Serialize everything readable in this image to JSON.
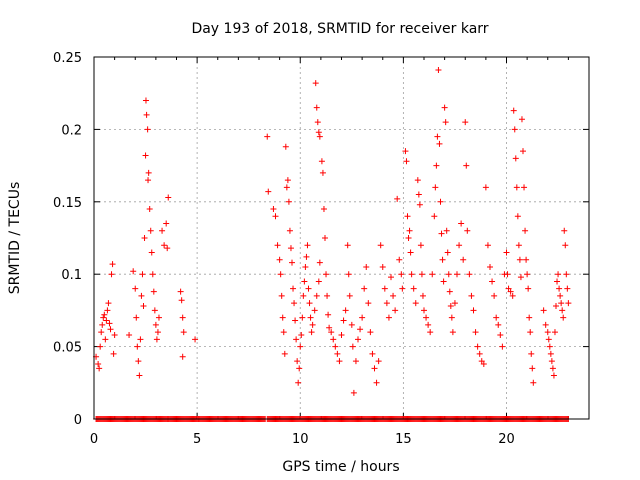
{
  "chart_data": {
    "type": "scatter",
    "title": "Day 193 of 2018, SRMTID for receiver karr",
    "xlabel": "GPS time / hours",
    "ylabel": "SRMTID / TECUs",
    "xlim": [
      0,
      24
    ],
    "ylim": [
      0,
      0.25
    ],
    "xticks": [
      0,
      5,
      10,
      15,
      20
    ],
    "xtick_labels": [
      "0",
      "5",
      "10",
      "15",
      "20"
    ],
    "yticks": [
      0,
      0.05,
      0.1,
      0.15,
      0.2,
      0.25
    ],
    "ytick_labels": [
      "0",
      "0.05",
      "0.1",
      "0.15",
      "0.2",
      "0.25"
    ],
    "grid": true,
    "marker": "+",
    "series": [
      {
        "name": "SRMTID",
        "color": "#ff0000",
        "points": [
          [
            0.1,
            0.043
          ],
          [
            0.2,
            0.038
          ],
          [
            0.25,
            0.035
          ],
          [
            0.3,
            0.05
          ],
          [
            0.35,
            0.06
          ],
          [
            0.4,
            0.065
          ],
          [
            0.45,
            0.07
          ],
          [
            0.5,
            0.072
          ],
          [
            0.55,
            0.055
          ],
          [
            0.6,
            0.068
          ],
          [
            0.65,
            0.075
          ],
          [
            0.7,
            0.08
          ],
          [
            0.75,
            0.066
          ],
          [
            0.8,
            0.062
          ],
          [
            0.85,
            0.1
          ],
          [
            0.9,
            0.107
          ],
          [
            0.95,
            0.045
          ],
          [
            1.0,
            0.058
          ],
          [
            1.7,
            0.058
          ],
          [
            1.9,
            0.102
          ],
          [
            2.0,
            0.09
          ],
          [
            2.05,
            0.07
          ],
          [
            2.1,
            0.05
          ],
          [
            2.15,
            0.04
          ],
          [
            2.2,
            0.03
          ],
          [
            2.25,
            0.055
          ],
          [
            2.3,
            0.085
          ],
          [
            2.35,
            0.1
          ],
          [
            2.4,
            0.078
          ],
          [
            2.45,
            0.125
          ],
          [
            2.5,
            0.182
          ],
          [
            2.52,
            0.22
          ],
          [
            2.55,
            0.21
          ],
          [
            2.6,
            0.2
          ],
          [
            2.62,
            0.165
          ],
          [
            2.65,
            0.17
          ],
          [
            2.7,
            0.145
          ],
          [
            2.75,
            0.13
          ],
          [
            2.8,
            0.115
          ],
          [
            2.85,
            0.1
          ],
          [
            2.9,
            0.088
          ],
          [
            2.95,
            0.075
          ],
          [
            3.0,
            0.065
          ],
          [
            3.05,
            0.055
          ],
          [
            3.1,
            0.06
          ],
          [
            3.15,
            0.07
          ],
          [
            3.3,
            0.13
          ],
          [
            3.4,
            0.12
          ],
          [
            3.5,
            0.135
          ],
          [
            3.6,
            0.153
          ],
          [
            3.55,
            0.118
          ],
          [
            4.2,
            0.088
          ],
          [
            4.25,
            0.082
          ],
          [
            4.3,
            0.07
          ],
          [
            4.35,
            0.06
          ],
          [
            4.3,
            0.043
          ],
          [
            4.9,
            0.055
          ],
          [
            8.4,
            0.195
          ],
          [
            8.45,
            0.157
          ],
          [
            8.7,
            0.145
          ],
          [
            8.8,
            0.14
          ],
          [
            8.9,
            0.12
          ],
          [
            9.0,
            0.11
          ],
          [
            9.05,
            0.1
          ],
          [
            9.1,
            0.085
          ],
          [
            9.15,
            0.07
          ],
          [
            9.2,
            0.06
          ],
          [
            9.25,
            0.045
          ],
          [
            9.3,
            0.188
          ],
          [
            9.35,
            0.16
          ],
          [
            9.4,
            0.165
          ],
          [
            9.45,
            0.15
          ],
          [
            9.5,
            0.13
          ],
          [
            9.55,
            0.118
          ],
          [
            9.6,
            0.108
          ],
          [
            9.65,
            0.09
          ],
          [
            9.7,
            0.08
          ],
          [
            9.75,
            0.068
          ],
          [
            9.8,
            0.055
          ],
          [
            9.85,
            0.04
          ],
          [
            9.9,
            0.025
          ],
          [
            9.95,
            0.035
          ],
          [
            10.0,
            0.05
          ],
          [
            10.05,
            0.058
          ],
          [
            10.1,
            0.07
          ],
          [
            10.15,
            0.085
          ],
          [
            10.2,
            0.095
          ],
          [
            10.25,
            0.105
          ],
          [
            10.3,
            0.112
          ],
          [
            10.35,
            0.12
          ],
          [
            10.4,
            0.09
          ],
          [
            10.45,
            0.08
          ],
          [
            10.5,
            0.07
          ],
          [
            10.55,
            0.06
          ],
          [
            10.6,
            0.065
          ],
          [
            10.7,
            0.075
          ],
          [
            10.8,
            0.085
          ],
          [
            10.9,
            0.095
          ],
          [
            10.95,
            0.108
          ],
          [
            10.75,
            0.232
          ],
          [
            10.8,
            0.215
          ],
          [
            10.85,
            0.205
          ],
          [
            10.9,
            0.198
          ],
          [
            10.95,
            0.195
          ],
          [
            11.05,
            0.178
          ],
          [
            11.1,
            0.17
          ],
          [
            11.15,
            0.145
          ],
          [
            11.2,
            0.125
          ],
          [
            11.25,
            0.1
          ],
          [
            11.3,
            0.085
          ],
          [
            11.35,
            0.072
          ],
          [
            11.4,
            0.063
          ],
          [
            11.5,
            0.06
          ],
          [
            11.6,
            0.055
          ],
          [
            11.7,
            0.05
          ],
          [
            11.8,
            0.045
          ],
          [
            11.9,
            0.04
          ],
          [
            12.0,
            0.058
          ],
          [
            12.1,
            0.068
          ],
          [
            12.2,
            0.075
          ],
          [
            12.3,
            0.12
          ],
          [
            12.35,
            0.1
          ],
          [
            12.4,
            0.085
          ],
          [
            12.5,
            0.065
          ],
          [
            12.55,
            0.05
          ],
          [
            12.6,
            0.018
          ],
          [
            12.7,
            0.04
          ],
          [
            12.8,
            0.055
          ],
          [
            12.9,
            0.062
          ],
          [
            13.0,
            0.07
          ],
          [
            13.1,
            0.09
          ],
          [
            13.2,
            0.105
          ],
          [
            13.3,
            0.08
          ],
          [
            13.4,
            0.06
          ],
          [
            13.5,
            0.045
          ],
          [
            13.6,
            0.035
          ],
          [
            13.7,
            0.025
          ],
          [
            13.8,
            0.04
          ],
          [
            13.9,
            0.12
          ],
          [
            14.0,
            0.105
          ],
          [
            14.1,
            0.09
          ],
          [
            14.2,
            0.08
          ],
          [
            14.3,
            0.07
          ],
          [
            14.4,
            0.098
          ],
          [
            14.5,
            0.085
          ],
          [
            14.6,
            0.075
          ],
          [
            14.7,
            0.152
          ],
          [
            14.8,
            0.11
          ],
          [
            14.9,
            0.1
          ],
          [
            14.95,
            0.09
          ],
          [
            15.1,
            0.185
          ],
          [
            15.15,
            0.178
          ],
          [
            15.2,
            0.14
          ],
          [
            15.25,
            0.125
          ],
          [
            15.3,
            0.13
          ],
          [
            15.35,
            0.115
          ],
          [
            15.4,
            0.1
          ],
          [
            15.5,
            0.09
          ],
          [
            15.6,
            0.08
          ],
          [
            15.7,
            0.165
          ],
          [
            15.75,
            0.155
          ],
          [
            15.8,
            0.148
          ],
          [
            15.85,
            0.12
          ],
          [
            15.9,
            0.1
          ],
          [
            15.95,
            0.085
          ],
          [
            16.0,
            0.075
          ],
          [
            16.1,
            0.07
          ],
          [
            16.2,
            0.065
          ],
          [
            16.3,
            0.06
          ],
          [
            16.4,
            0.1
          ],
          [
            16.5,
            0.14
          ],
          [
            16.55,
            0.16
          ],
          [
            16.6,
            0.175
          ],
          [
            16.65,
            0.195
          ],
          [
            16.7,
            0.241
          ],
          [
            16.75,
            0.19
          ],
          [
            16.8,
            0.15
          ],
          [
            16.85,
            0.128
          ],
          [
            16.9,
            0.11
          ],
          [
            16.95,
            0.095
          ],
          [
            17.0,
            0.215
          ],
          [
            17.05,
            0.205
          ],
          [
            17.1,
            0.13
          ],
          [
            17.15,
            0.115
          ],
          [
            17.2,
            0.1
          ],
          [
            17.25,
            0.088
          ],
          [
            17.3,
            0.078
          ],
          [
            17.35,
            0.07
          ],
          [
            17.4,
            0.06
          ],
          [
            17.5,
            0.08
          ],
          [
            17.6,
            0.1
          ],
          [
            17.7,
            0.12
          ],
          [
            17.8,
            0.135
          ],
          [
            17.9,
            0.11
          ],
          [
            18.0,
            0.205
          ],
          [
            18.05,
            0.175
          ],
          [
            18.1,
            0.13
          ],
          [
            18.2,
            0.1
          ],
          [
            18.3,
            0.085
          ],
          [
            18.4,
            0.075
          ],
          [
            18.5,
            0.06
          ],
          [
            18.6,
            0.05
          ],
          [
            18.7,
            0.045
          ],
          [
            18.8,
            0.04
          ],
          [
            18.9,
            0.038
          ],
          [
            19.0,
            0.16
          ],
          [
            19.1,
            0.12
          ],
          [
            19.2,
            0.105
          ],
          [
            19.3,
            0.095
          ],
          [
            19.4,
            0.085
          ],
          [
            19.5,
            0.07
          ],
          [
            19.6,
            0.065
          ],
          [
            19.7,
            0.058
          ],
          [
            19.8,
            0.05
          ],
          [
            19.9,
            0.1
          ],
          [
            20.0,
            0.115
          ],
          [
            20.05,
            0.1
          ],
          [
            20.1,
            0.09
          ],
          [
            20.2,
            0.088
          ],
          [
            20.3,
            0.085
          ],
          [
            20.35,
            0.213
          ],
          [
            20.4,
            0.2
          ],
          [
            20.45,
            0.18
          ],
          [
            20.5,
            0.16
          ],
          [
            20.55,
            0.14
          ],
          [
            20.6,
            0.12
          ],
          [
            20.65,
            0.11
          ],
          [
            20.7,
            0.098
          ],
          [
            20.75,
            0.207
          ],
          [
            20.8,
            0.185
          ],
          [
            20.85,
            0.16
          ],
          [
            20.9,
            0.13
          ],
          [
            20.95,
            0.11
          ],
          [
            21.0,
            0.1
          ],
          [
            21.05,
            0.09
          ],
          [
            21.1,
            0.07
          ],
          [
            21.15,
            0.06
          ],
          [
            21.2,
            0.045
          ],
          [
            21.25,
            0.035
          ],
          [
            21.3,
            0.025
          ],
          [
            21.8,
            0.075
          ],
          [
            21.9,
            0.065
          ],
          [
            22.0,
            0.06
          ],
          [
            22.05,
            0.055
          ],
          [
            22.1,
            0.05
          ],
          [
            22.15,
            0.045
          ],
          [
            22.2,
            0.04
          ],
          [
            22.25,
            0.035
          ],
          [
            22.3,
            0.03
          ],
          [
            22.35,
            0.06
          ],
          [
            22.4,
            0.078
          ],
          [
            22.45,
            0.095
          ],
          [
            22.5,
            0.1
          ],
          [
            22.55,
            0.09
          ],
          [
            22.6,
            0.085
          ],
          [
            22.65,
            0.08
          ],
          [
            22.7,
            0.075
          ],
          [
            22.75,
            0.07
          ],
          [
            22.8,
            0.13
          ],
          [
            22.85,
            0.12
          ],
          [
            22.9,
            0.1
          ],
          [
            22.95,
            0.09
          ],
          [
            23.0,
            0.08
          ]
        ],
        "zero_band": {
          "y": 0,
          "segments": [
            [
              0.1,
              3.6
            ],
            [
              3.6,
              5.1
            ],
            [
              5.1,
              8.3
            ],
            [
              8.4,
              23.0
            ]
          ]
        }
      }
    ]
  }
}
